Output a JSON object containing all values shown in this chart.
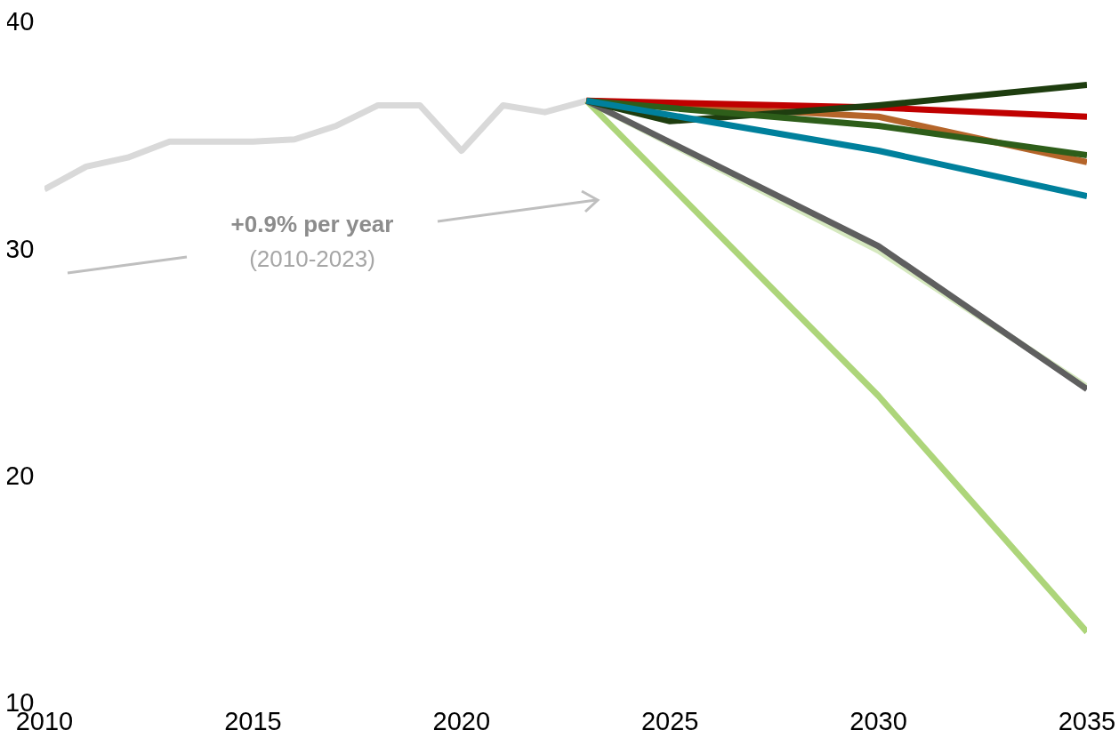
{
  "chart_data": {
    "type": "line",
    "xlim": [
      2010,
      2035
    ],
    "xticks": [
      2010,
      2015,
      2020,
      2025,
      2030,
      2035
    ],
    "ylim": [
      10,
      40
    ],
    "yticks": [
      10,
      20,
      30,
      40
    ],
    "grid": false,
    "marker": "none",
    "line_style": "solid",
    "annotations": [
      "+0.9% per year",
      "(2010-2023)"
    ],
    "series": [
      {
        "color": "#d9d9d9",
        "x": [
          2010,
          2011,
          2012,
          2013,
          2014,
          2015,
          2016,
          2017,
          2018,
          2019,
          2020,
          2021,
          2022,
          2023
        ],
        "values": [
          32.6,
          33.6,
          34.0,
          34.7,
          34.7,
          34.7,
          34.8,
          35.4,
          36.3,
          36.3,
          34.3,
          36.3,
          36.0,
          36.5
        ]
      },
      {
        "color": "#d6e9bf",
        "x": [
          2023,
          2030,
          2035
        ],
        "values": [
          36.5,
          29.9,
          23.9
        ]
      },
      {
        "color": "#add57a",
        "x": [
          2023,
          2030,
          2035
        ],
        "values": [
          36.5,
          23.5,
          13.1
        ]
      },
      {
        "color": "#5f5f5f",
        "x": [
          2023,
          2030,
          2035
        ],
        "values": [
          36.5,
          30.1,
          23.8
        ]
      },
      {
        "color": "#b5652a",
        "x": [
          2023,
          2030,
          2035
        ],
        "values": [
          36.5,
          35.8,
          33.8
        ]
      },
      {
        "color": "#c00000",
        "x": [
          2023,
          2030,
          2035
        ],
        "values": [
          36.5,
          36.2,
          35.8
        ]
      },
      {
        "color": "#1e3d0f",
        "x": [
          2023,
          2025,
          2030,
          2035
        ],
        "values": [
          36.5,
          35.6,
          36.3,
          37.2
        ]
      },
      {
        "color": "#2e5e1a",
        "x": [
          2023,
          2030,
          2035
        ],
        "values": [
          36.5,
          35.4,
          34.1
        ]
      },
      {
        "color": "#00809c",
        "x": [
          2023,
          2030,
          2035
        ],
        "values": [
          36.5,
          34.3,
          32.3
        ]
      }
    ]
  }
}
